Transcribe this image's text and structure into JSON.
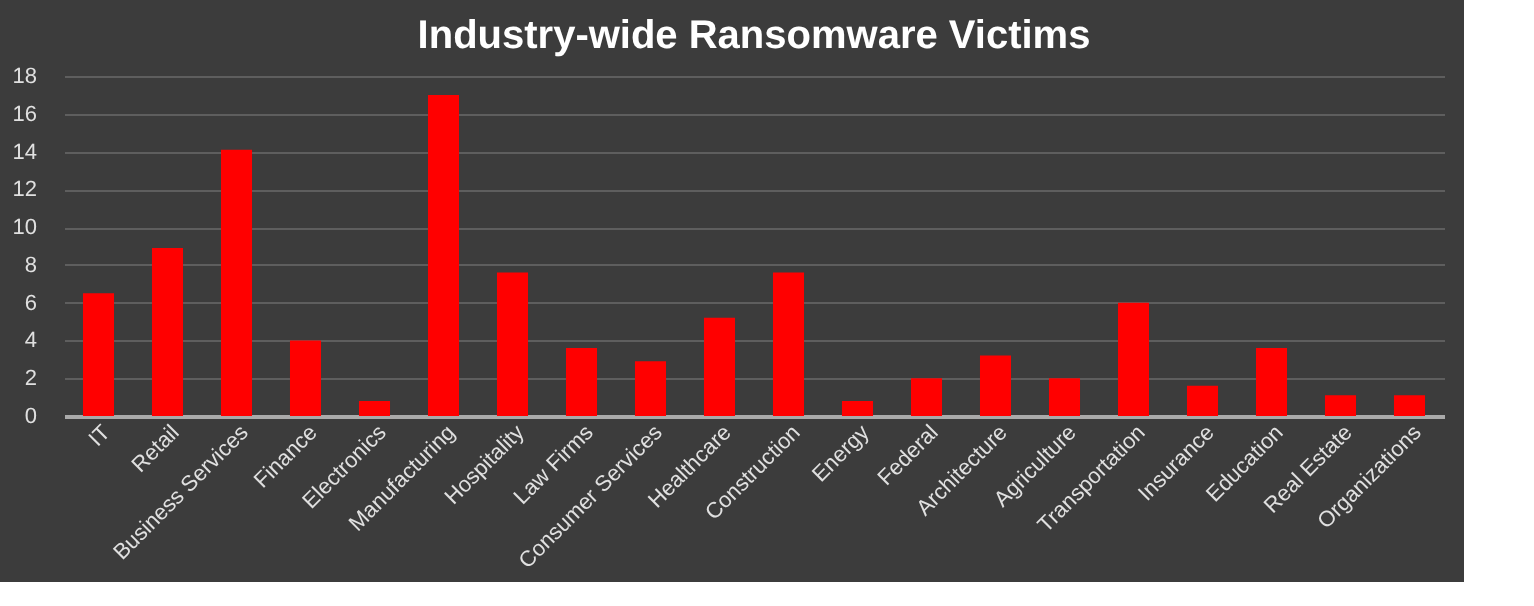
{
  "chart_data": {
    "type": "bar",
    "title": "Industry-wide Ransomware Victims",
    "categories": [
      "IT",
      "Retail",
      "Business Services",
      "Finance",
      "Electronics",
      "Manufacturing",
      "Hospitality",
      "Law Firms",
      "Consumer Services",
      "Healthcare",
      "Construction",
      "Energy",
      "Federal",
      "Architecture",
      "Agriculture",
      "Transportation",
      "Insurance",
      "Education",
      "Real Estate",
      "Organizations"
    ],
    "values": [
      6.5,
      8.9,
      14.1,
      4.0,
      0.8,
      17.0,
      7.6,
      3.6,
      2.9,
      5.2,
      7.6,
      0.8,
      2.0,
      3.2,
      2.0,
      6.0,
      1.6,
      3.6,
      1.1,
      1.1
    ],
    "color": "#ff0000",
    "ylim": [
      0,
      18
    ],
    "yticks": [
      0,
      2,
      4,
      6,
      8,
      10,
      12,
      14,
      16,
      18
    ],
    "grid": "y"
  }
}
